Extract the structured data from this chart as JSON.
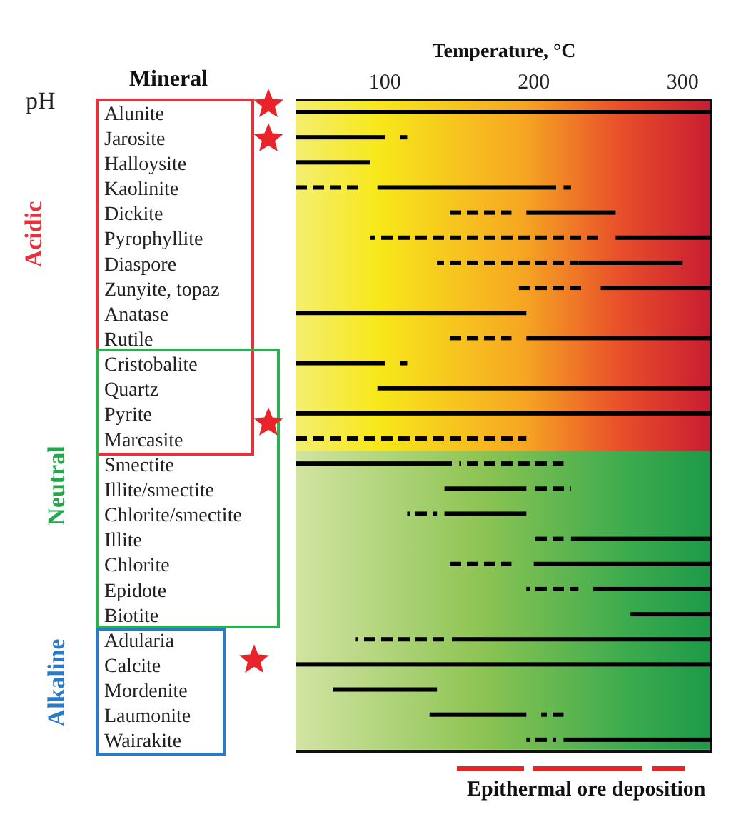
{
  "chart_data": {
    "type": "bar",
    "orientation": "horizontal",
    "xlabel": "Temperature, °C",
    "ylabel": "Mineral",
    "categories": [
      "Alunite",
      "Jarosite",
      "Halloysite",
      "Kaolinite",
      "Dickite",
      "Pyrophyllite",
      "Diaspore",
      "Zunyite, topaz",
      "Anatase",
      "Rutile",
      "Cristobalite",
      "Quartz",
      "Pyrite",
      "Marcasite",
      "Smectite",
      "Illite/smectite",
      "Chlorite/smectite",
      "Illite",
      "Chlorite",
      "Epidote",
      "Biotite",
      "Adularia",
      "Calcite",
      "Mordenite",
      "Laumonite",
      "Wairakite"
    ],
    "xlim": [
      40,
      320
    ],
    "xticks": [
      100,
      200,
      300
    ],
    "grid": false,
    "legend": false,
    "series": [
      {
        "color": "#000000",
        "line_style": "solid",
        "base": [
          40,
          40,
          40,
          95,
          195,
          255,
          230,
          245,
          40,
          195,
          40,
          95,
          40,
          null,
          40,
          140,
          140,
          225,
          200,
          240,
          265,
          145,
          40,
          65,
          130,
          220
        ],
        "values": [
          280,
          60,
          50,
          120,
          60,
          65,
          70,
          75,
          155,
          125,
          60,
          225,
          280,
          null,
          105,
          55,
          55,
          95,
          120,
          80,
          55,
          175,
          280,
          70,
          65,
          100
        ]
      },
      {
        "color": "#000000",
        "line_style": "solid",
        "base": [
          null,
          110,
          null,
          220,
          null,
          null,
          null,
          null,
          null,
          null,
          110,
          null,
          null,
          null,
          null,
          null,
          null,
          null,
          null,
          null,
          null,
          null,
          null,
          null,
          null,
          null
        ],
        "values": [
          null,
          5,
          null,
          5,
          null,
          null,
          null,
          null,
          null,
          null,
          5,
          null,
          null,
          null,
          null,
          null,
          null,
          null,
          null,
          null,
          null,
          null,
          null,
          null,
          null,
          null
        ]
      },
      {
        "color": "#000000",
        "line_style": "dashed",
        "base": [
          null,
          null,
          null,
          40,
          140,
          90,
          135,
          190,
          null,
          140,
          null,
          null,
          null,
          40,
          150,
          200,
          115,
          200,
          140,
          195,
          null,
          80,
          null,
          null,
          205,
          195
        ],
        "values": [
          null,
          null,
          null,
          45,
          45,
          155,
          95,
          45,
          null,
          45,
          null,
          null,
          null,
          155,
          70,
          25,
          20,
          20,
          45,
          35,
          null,
          60,
          null,
          null,
          15,
          20
        ]
      }
    ],
    "annotations": [
      "pH",
      "Acidic",
      "Neutral",
      "Alkaline",
      "Epithermal ore deposition"
    ]
  }
}
